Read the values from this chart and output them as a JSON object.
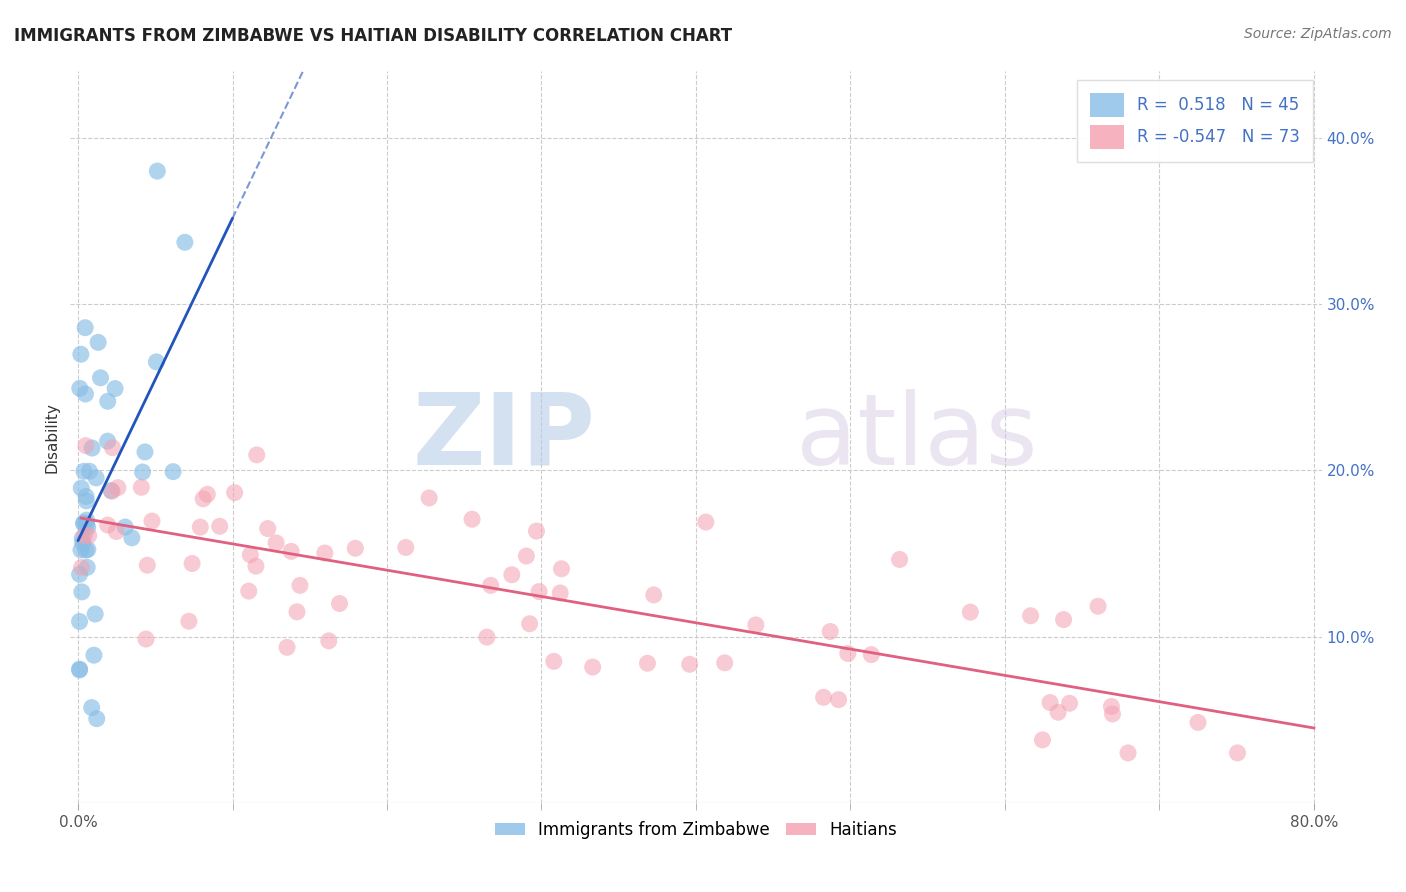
{
  "title": "IMMIGRANTS FROM ZIMBABWE VS HAITIAN DISABILITY CORRELATION CHART",
  "source": "Source: ZipAtlas.com",
  "ylabel": "Disability",
  "r_zimbabwe": 0.518,
  "n_zimbabwe": 45,
  "r_haitian": -0.547,
  "n_haitian": 73,
  "color_zimbabwe": "#88bde6",
  "color_haitian": "#f4a0b0",
  "line_color_zimbabwe": "#2255bb",
  "line_color_haitian": "#e06080",
  "xlim": [
    -0.005,
    0.805
  ],
  "ylim": [
    0.0,
    0.44
  ],
  "xtick_positions": [
    0.0,
    0.8
  ],
  "xtick_labels": [
    "0.0%",
    "80.0%"
  ],
  "yticks_right": [
    0.1,
    0.2,
    0.3,
    0.4
  ],
  "ytick_right_labels": [
    "10.0%",
    "20.0%",
    "30.0%",
    "40.0%"
  ],
  "grid_yticks": [
    0.1,
    0.2,
    0.3,
    0.4
  ],
  "grid_xticks": [
    0.0,
    0.1,
    0.2,
    0.3,
    0.4,
    0.5,
    0.6,
    0.7,
    0.8
  ],
  "grid_color": "#cccccc",
  "background_color": "#ffffff",
  "zim_seed": 7,
  "hai_seed": 12,
  "legend_zip_color": "#4472c4",
  "legend_hai_color": "#e06080"
}
